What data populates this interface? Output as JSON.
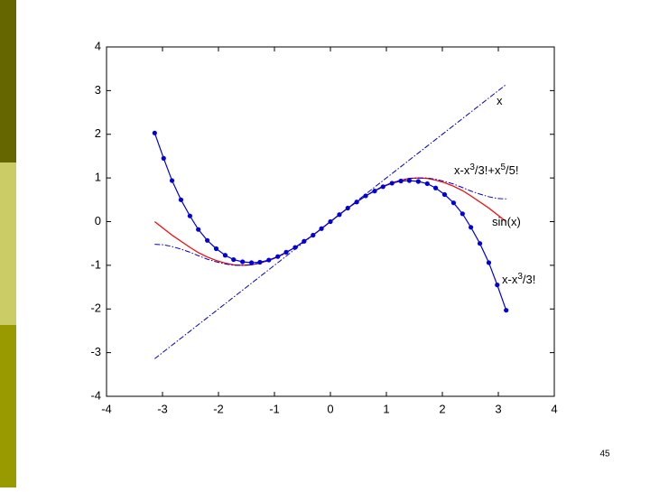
{
  "chart_data": {
    "type": "line",
    "x": [
      -3.14,
      -2.98,
      -2.83,
      -2.67,
      -2.51,
      -2.36,
      -2.2,
      -2.04,
      -1.88,
      -1.73,
      -1.57,
      -1.41,
      -1.26,
      -1.1,
      -0.94,
      -0.79,
      -0.63,
      -0.47,
      -0.31,
      -0.16,
      0,
      0.16,
      0.31,
      0.47,
      0.63,
      0.79,
      0.94,
      1.1,
      1.26,
      1.41,
      1.57,
      1.73,
      1.88,
      2.04,
      2.2,
      2.36,
      2.51,
      2.67,
      2.83,
      2.98,
      3.14
    ],
    "series": [
      {
        "color": "#0000cc",
        "dash": "dashdot",
        "values": [
          -3.14,
          -2.98,
          -2.83,
          -2.67,
          -2.51,
          -2.36,
          -2.2,
          -2.04,
          -1.88,
          -1.73,
          -1.57,
          -1.41,
          -1.26,
          -1.1,
          -0.94,
          -0.79,
          -0.63,
          -0.47,
          -0.31,
          -0.16,
          0,
          0.16,
          0.31,
          0.47,
          0.63,
          0.79,
          0.94,
          1.1,
          1.26,
          1.41,
          1.57,
          1.73,
          1.88,
          2.04,
          2.2,
          2.36,
          2.51,
          2.67,
          2.83,
          2.98,
          3.14
        ]
      },
      {
        "color": "#ff0000",
        "dash": "solid",
        "values": [
          0,
          -0.16,
          -0.31,
          -0.45,
          -0.59,
          -0.71,
          -0.81,
          -0.89,
          -0.95,
          -0.99,
          -1,
          -0.99,
          -0.95,
          -0.89,
          -0.81,
          -0.71,
          -0.59,
          -0.45,
          -0.31,
          -0.16,
          0,
          0.16,
          0.31,
          0.45,
          0.59,
          0.71,
          0.81,
          0.89,
          0.95,
          0.99,
          1,
          0.99,
          0.95,
          0.89,
          0.81,
          0.71,
          0.59,
          0.45,
          0.31,
          0.16,
          0
        ]
      },
      {
        "color": "#0000dd",
        "dash": "solid",
        "marker": true,
        "values": [
          2.03,
          1.45,
          0.94,
          0.5,
          0.13,
          -0.18,
          -0.43,
          -0.62,
          -0.77,
          -0.87,
          -0.92,
          -0.94,
          -0.93,
          -0.88,
          -0.8,
          -0.7,
          -0.59,
          -0.45,
          -0.31,
          -0.16,
          0,
          0.16,
          0.31,
          0.45,
          0.59,
          0.7,
          0.8,
          0.88,
          0.93,
          0.94,
          0.92,
          0.87,
          0.77,
          0.62,
          0.43,
          0.18,
          -0.13,
          -0.5,
          -0.94,
          -1.45,
          -2.03
        ]
      },
      {
        "color": "#0000cc",
        "dash": "dashdot",
        "values": [
          -0.52,
          -0.53,
          -0.57,
          -0.63,
          -0.7,
          -0.78,
          -0.86,
          -0.92,
          -0.97,
          -1,
          -1,
          -0.99,
          -0.95,
          -0.89,
          -0.81,
          -0.71,
          -0.59,
          -0.45,
          -0.31,
          -0.16,
          0,
          0.16,
          0.31,
          0.45,
          0.59,
          0.71,
          0.81,
          0.89,
          0.95,
          0.99,
          1,
          1,
          0.97,
          0.92,
          0.86,
          0.78,
          0.7,
          0.63,
          0.57,
          0.53,
          0.52
        ]
      }
    ],
    "annotations": [
      {
        "text_parts": [
          "x"
        ]
      },
      {
        "text_parts": [
          "x-x",
          "3",
          "/3!+x",
          "5",
          "/5!"
        ]
      },
      {
        "text_parts": [
          "sin(x)"
        ]
      },
      {
        "text_parts": [
          "x-x",
          "3",
          "/3!"
        ]
      }
    ],
    "xlim": [
      -4,
      4
    ],
    "ylim": [
      -4,
      4
    ],
    "xticks": [
      -4,
      -3,
      -2,
      -1,
      0,
      1,
      2,
      3,
      4
    ],
    "yticks": [
      -4,
      -3,
      -2,
      -1,
      0,
      1,
      2,
      3,
      4
    ],
    "grid": false
  },
  "slide": {
    "number": "45"
  }
}
